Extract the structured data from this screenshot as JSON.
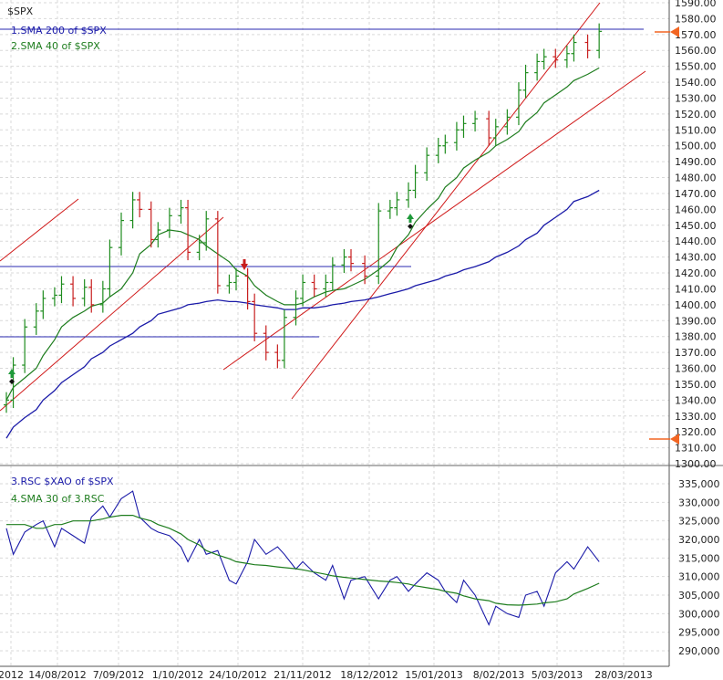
{
  "chart_data": [
    {
      "type": "bar",
      "title": "$SPX",
      "legend": [
        {
          "label": "1.SMA 200  of $SPX",
          "color": "#1a1aa8"
        },
        {
          "label": "2.SMA 40  of $SPX",
          "color": "#1e7d1e"
        }
      ],
      "ylim": [
        1300,
        1590
      ],
      "y_ticks": [
        "1300.00",
        "1310.00",
        "1320.00",
        "1330.00",
        "1340.00",
        "1350.00",
        "1360.00",
        "1370.00",
        "1380.00",
        "1390.00",
        "1400.00",
        "1410.00",
        "1420.00",
        "1430.00",
        "1440.00",
        "1450.00",
        "1460.00",
        "1470.00",
        "1480.00",
        "1490.00",
        "1500.00",
        "1510.00",
        "1520.00",
        "1530.00",
        "1540.00",
        "1550.00",
        "1560.00",
        "1570.00",
        "1580.00",
        "1590.00"
      ],
      "grid": true,
      "legend_placement": "top-left",
      "colors": {
        "up": "#1e8c1e",
        "down": "#c81e1e",
        "sma200": "#1a1aa8",
        "sma40": "#1e7d1e",
        "channel": "#d01818",
        "hline": "#2a2ab0",
        "marker": "#f26522"
      },
      "x": [
        "2012-07-24",
        "2012-07-27",
        "2012-08-01",
        "2012-08-06",
        "2012-08-09",
        "2012-08-14",
        "2012-08-17",
        "2012-08-22",
        "2012-08-27",
        "2012-08-30",
        "2012-09-04",
        "2012-09-07",
        "2012-09-12",
        "2012-09-17",
        "2012-09-20",
        "2012-09-25",
        "2012-09-28",
        "2012-10-03",
        "2012-10-08",
        "2012-10-11",
        "2012-10-16",
        "2012-10-19",
        "2012-10-24",
        "2012-10-29",
        "2012-11-01",
        "2012-11-06",
        "2012-11-09",
        "2012-11-14",
        "2012-11-19",
        "2012-11-22",
        "2012-11-27",
        "2012-11-30",
        "2012-12-05",
        "2012-12-10",
        "2012-12-13",
        "2012-12-18",
        "2012-12-21",
        "2012-12-27",
        "2013-01-02",
        "2013-01-07",
        "2013-01-10",
        "2013-01-15",
        "2013-01-18",
        "2013-01-23",
        "2013-01-28",
        "2013-01-31",
        "2013-02-05",
        "2013-02-08",
        "2013-02-13",
        "2013-02-19",
        "2013-02-22",
        "2013-02-27",
        "2013-03-04",
        "2013-03-07",
        "2013-03-12",
        "2013-03-15",
        "2013-03-20",
        "2013-03-25",
        "2013-03-28",
        "2013-04-03",
        "2013-04-08"
      ],
      "close": [
        1340,
        1362,
        1386,
        1396,
        1404,
        1406,
        1413,
        1404,
        1411,
        1400,
        1410,
        1436,
        1453,
        1466,
        1460,
        1441,
        1447,
        1456,
        1461,
        1433,
        1439,
        1454,
        1412,
        1414,
        1418,
        1402,
        1382,
        1370,
        1365,
        1392,
        1404,
        1414,
        1410,
        1414,
        1425,
        1430,
        1426,
        1418,
        1459,
        1461,
        1466,
        1472,
        1483,
        1494,
        1500,
        1502,
        1510,
        1514,
        1517,
        1505,
        1512,
        1518,
        1535,
        1546,
        1553,
        1556,
        1554,
        1558,
        1565,
        1560,
        1572
      ],
      "sma200": [
        1316,
        1323,
        1329,
        1334,
        1340,
        1346,
        1351,
        1356,
        1361,
        1366,
        1370,
        1374,
        1378,
        1382,
        1386,
        1390,
        1394,
        1396,
        1398,
        1400,
        1401,
        1402,
        1403,
        1402,
        1402,
        1401,
        1400,
        1399,
        1398,
        1397,
        1397,
        1398,
        1398,
        1399,
        1400,
        1401,
        1402,
        1403,
        1405,
        1407,
        1408,
        1410,
        1412,
        1414,
        1416,
        1418,
        1420,
        1422,
        1424,
        1427,
        1430,
        1433,
        1437,
        1441,
        1445,
        1450,
        1455,
        1460,
        1465,
        1468,
        1472
      ],
      "sma40": [
        1340,
        1348,
        1354,
        1360,
        1368,
        1378,
        1386,
        1392,
        1396,
        1399,
        1401,
        1405,
        1410,
        1420,
        1432,
        1438,
        1444,
        1447,
        1446,
        1444,
        1441,
        1437,
        1432,
        1427,
        1422,
        1418,
        1412,
        1406,
        1402,
        1400,
        1400,
        1401,
        1405,
        1408,
        1409,
        1410,
        1412,
        1416,
        1422,
        1428,
        1436,
        1444,
        1452,
        1460,
        1467,
        1474,
        1480,
        1486,
        1491,
        1496,
        1500,
        1504,
        1509,
        1515,
        1521,
        1527,
        1532,
        1537,
        1541,
        1545,
        1549
      ]
    },
    {
      "type": "line",
      "title": "",
      "legend": [
        {
          "label": "3.RSC  $XAO of $SPX",
          "color": "#1a1aa8"
        },
        {
          "label": "4.SMA 30  of 3.RSC",
          "color": "#1e7d1e"
        }
      ],
      "ylim": [
        290000,
        335000
      ],
      "y_ticks": [
        "290,000",
        "295,000",
        "300,000",
        "305,000",
        "310,000",
        "315,000",
        "320,000",
        "325,000",
        "330,000",
        "335,000"
      ],
      "rsc": [
        323000,
        316000,
        322000,
        324000,
        325000,
        318000,
        323000,
        321000,
        319000,
        326000,
        329000,
        326000,
        331000,
        333000,
        326000,
        323000,
        322000,
        321000,
        318000,
        314000,
        320000,
        316000,
        317000,
        309000,
        308000,
        314000,
        320000,
        316000,
        318000,
        316000,
        312000,
        314000,
        311000,
        309000,
        313000,
        304000,
        309000,
        310000,
        304000,
        309000,
        310000,
        306000,
        308000,
        311000,
        309000,
        306000,
        303000,
        309000,
        305000,
        297000,
        302000,
        300000,
        299000,
        305000,
        306000,
        302000,
        311000,
        314000,
        312000,
        318000,
        314000
      ],
      "sma30": [
        324000,
        324000,
        324000,
        323000,
        323000,
        324000,
        324000,
        325000,
        325000,
        325000,
        325500,
        326000,
        326500,
        326500,
        325800,
        325000,
        324000,
        323000,
        321500,
        320000,
        318500,
        317000,
        315800,
        314800,
        314000,
        313500,
        313200,
        313000,
        312600,
        312400,
        312100,
        311800,
        311200,
        310600,
        310200,
        309800,
        309600,
        309200,
        308800,
        308600,
        308400,
        308000,
        307500,
        307000,
        306500,
        306000,
        305500,
        304800,
        304000,
        303500,
        302800,
        302400,
        302300,
        302400,
        302600,
        302900,
        303200,
        304000,
        305300,
        306800,
        308200
      ]
    }
  ],
  "x_tick_labels": [
    "2012",
    "14/08/2012",
    "7/09/2012",
    "1/10/2012",
    "24/10/2012",
    "21/11/2012",
    "18/12/2012",
    "15/01/2013",
    "8/02/2013",
    "5/03/2013",
    "28/03/2013"
  ]
}
